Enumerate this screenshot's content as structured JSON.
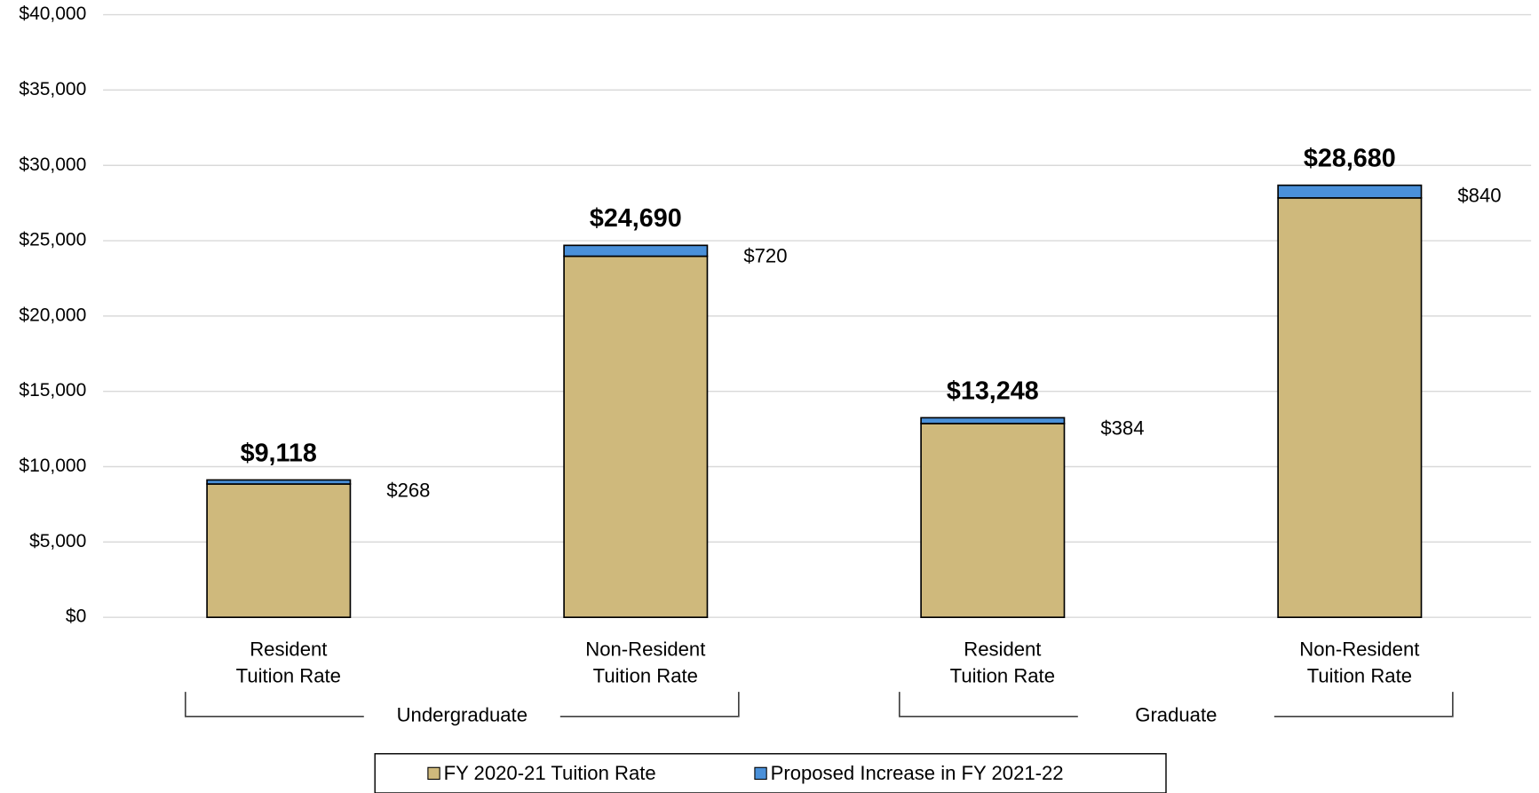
{
  "chart_data": {
    "type": "stacked_bar",
    "categories": [
      [
        "Resident",
        "Tuition Rate"
      ],
      [
        "Non-Resident",
        "Tuition Rate"
      ],
      [
        "Resident",
        "Tuition Rate"
      ],
      [
        "Non-Resident",
        "Tuition Rate"
      ]
    ],
    "groups": [
      "Undergraduate",
      "Graduate"
    ],
    "series": [
      {
        "name": "FY 2020-21 Tuition Rate",
        "color": "#cfb97c",
        "values": [
          8850,
          23970,
          12864,
          27840
        ]
      },
      {
        "name": "Proposed Increase in FY 2021-22",
        "color": "#4a90d9",
        "values": [
          268,
          720,
          384,
          840
        ],
        "value_labels": [
          "$268",
          "$720",
          "$384",
          "$840"
        ]
      }
    ],
    "totals": [
      9118,
      24690,
      13248,
      28680
    ],
    "total_labels": [
      "$9,118",
      "$24,690",
      "$13,248",
      "$28,680"
    ],
    "ylim": [
      0,
      40000
    ],
    "yticks": [
      {
        "value": 0,
        "label": "$0"
      },
      {
        "value": 5000,
        "label": "$5,000"
      },
      {
        "value": 10000,
        "label": "$10,000"
      },
      {
        "value": 15000,
        "label": "$15,000"
      },
      {
        "value": 20000,
        "label": "$20,000"
      },
      {
        "value": 25000,
        "label": "$25,000"
      },
      {
        "value": 30000,
        "label": "$30,000"
      },
      {
        "value": 35000,
        "label": "$35,000"
      },
      {
        "value": 40000,
        "label": "$40,000"
      }
    ],
    "grid": true,
    "legend": "bottom"
  }
}
